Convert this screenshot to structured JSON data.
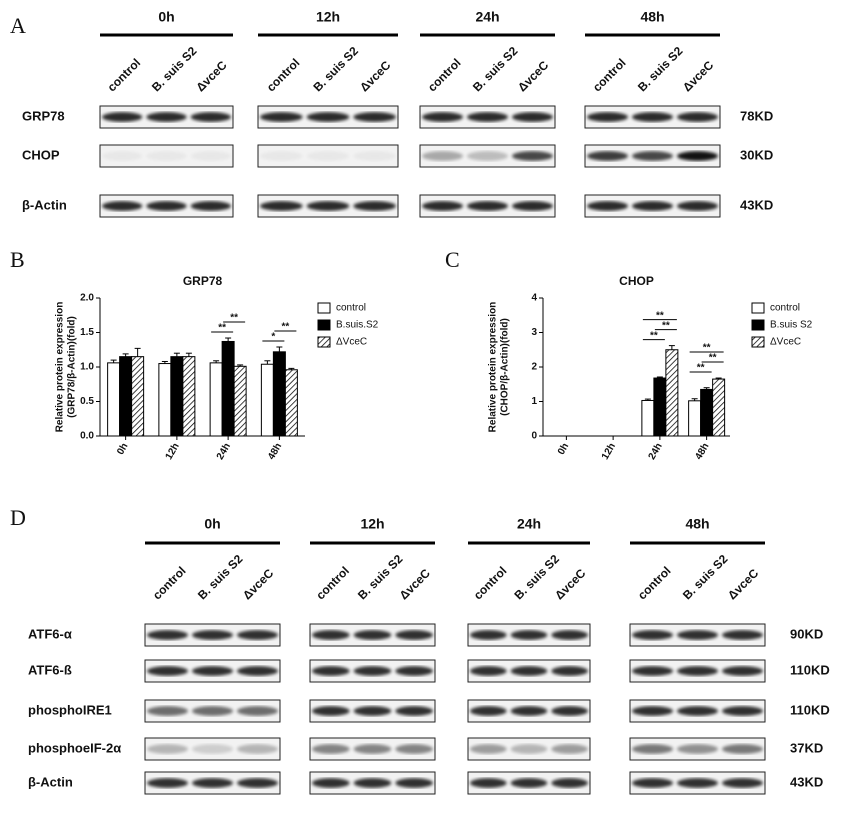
{
  "panel_labels": [
    "A",
    "B",
    "C",
    "D"
  ],
  "blot_a": {
    "times": [
      "0h",
      "12h",
      "24h",
      "48h"
    ],
    "lanes": [
      "control",
      "B. suis S2",
      "ΔvceC"
    ],
    "rows": [
      {
        "name": "GRP78",
        "size": "78KD"
      },
      {
        "name": "CHOP",
        "size": "30KD"
      },
      {
        "name": "β-Actin",
        "size": "43KD"
      }
    ]
  },
  "chart_data": [
    {
      "type": "bar",
      "title": "GRP78",
      "ylabel": [
        "Relative protein expression",
        "(GRP78/β-Actin)(fold)"
      ],
      "categories": [
        "0h",
        "12h",
        "24h",
        "48h"
      ],
      "series": [
        {
          "name": "control",
          "color": "#ffffff",
          "values": [
            1.06,
            1.05,
            1.06,
            1.04
          ],
          "errors": [
            0.04,
            0.03,
            0.03,
            0.05
          ]
        },
        {
          "name": "B.suis.S2",
          "color": "#000000",
          "values": [
            1.15,
            1.15,
            1.37,
            1.22
          ],
          "errors": [
            0.04,
            0.05,
            0.05,
            0.07
          ]
        },
        {
          "name": "ΔVceC",
          "color": "#ffffff",
          "hatch": true,
          "values": [
            1.15,
            1.15,
            1.01,
            0.96
          ],
          "errors": [
            0.12,
            0.05,
            0.02,
            0.02
          ]
        }
      ],
      "ylim": [
        0,
        2
      ],
      "yticks": [
        {
          "value": 0,
          "label": "0.0"
        },
        0.5,
        {
          "value": 1,
          "label": "1.0"
        },
        1.5,
        {
          "value": 2,
          "label": "2.0"
        }
      ],
      "annotations": [
        {
          "text": "**",
          "category": 2,
          "series": [
            0,
            1
          ]
        },
        {
          "text": "**",
          "category": 2,
          "series": [
            1,
            2
          ]
        },
        {
          "text": "*",
          "category": 3,
          "series": [
            0,
            1
          ]
        },
        {
          "text": "**",
          "category": 3,
          "series": [
            1,
            2
          ]
        }
      ]
    },
    {
      "type": "bar",
      "title": "CHOP",
      "ylabel": [
        "Relative protein expression",
        "(CHOP/β-Actin)(fold)"
      ],
      "categories": [
        "0h",
        "12h",
        "24h",
        "48h"
      ],
      "series": [
        {
          "name": "control",
          "color": "#ffffff",
          "values": [
            0,
            0,
            1.03,
            1.02
          ],
          "errors": [
            0,
            0,
            0.04,
            0.06
          ]
        },
        {
          "name": "B.suis S2",
          "color": "#000000",
          "values": [
            0,
            0,
            1.68,
            1.35
          ],
          "errors": [
            0,
            0,
            0.03,
            0.05
          ]
        },
        {
          "name": "ΔVceC",
          "color": "#ffffff",
          "hatch": true,
          "values": [
            0,
            0,
            2.5,
            1.65
          ],
          "errors": [
            0,
            0,
            0.12,
            0.03
          ]
        }
      ],
      "ylim": [
        0,
        4
      ],
      "yticks": [
        0,
        1,
        2,
        3,
        4
      ],
      "annotations": [
        {
          "text": "**",
          "category": 2,
          "series": [
            0,
            1
          ]
        },
        {
          "text": "**",
          "category": 2,
          "series": [
            1,
            2
          ]
        },
        {
          "text": "**",
          "category": 2,
          "series": [
            0,
            2
          ]
        },
        {
          "text": "**",
          "category": 3,
          "series": [
            0,
            1
          ]
        },
        {
          "text": "**",
          "category": 3,
          "series": [
            1,
            2
          ]
        },
        {
          "text": "**",
          "category": 3,
          "series": [
            0,
            2
          ]
        }
      ]
    }
  ],
  "blot_d": {
    "times": [
      "0h",
      "12h",
      "24h",
      "48h"
    ],
    "lanes": [
      "control",
      "B. suis S2",
      "ΔvceC"
    ],
    "rows": [
      {
        "name": "ATF6-α",
        "size": "90KD"
      },
      {
        "name": "ATF6-ß",
        "size": "110KD"
      },
      {
        "name": "phosphoIRE1",
        "size": "110KD"
      },
      {
        "name": "phosphoeIF-2α",
        "size": "37KD"
      },
      {
        "name": "β-Actin",
        "size": "43KD"
      }
    ]
  }
}
